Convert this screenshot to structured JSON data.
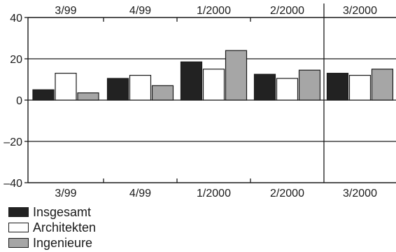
{
  "chart_data": {
    "type": "bar",
    "categories": [
      "3/99",
      "4/99",
      "1/2000",
      "2/2000",
      "3/2000"
    ],
    "series": [
      {
        "name": "Insgesamt",
        "values": [
          5,
          10.5,
          18.5,
          12.5,
          13
        ],
        "color": "#222222"
      },
      {
        "name": "Architekten",
        "values": [
          13,
          12,
          15,
          10.5,
          12
        ],
        "color": "#ffffff"
      },
      {
        "name": "Ingenieure",
        "values": [
          3.5,
          7,
          24,
          14.5,
          15
        ],
        "color": "#a6a6a6"
      }
    ],
    "yticks": [
      40,
      20,
      0,
      -20,
      -40
    ],
    "ytick_labels": [
      "40",
      "20",
      "0",
      "–20",
      "–40"
    ],
    "ylim": [
      -40,
      40
    ],
    "title": "",
    "xlabel": "",
    "ylabel": "",
    "grid": "horizontal lines at 20, 0 and -20",
    "legend_position": "bottom-left",
    "category_labels": "top and bottom"
  }
}
